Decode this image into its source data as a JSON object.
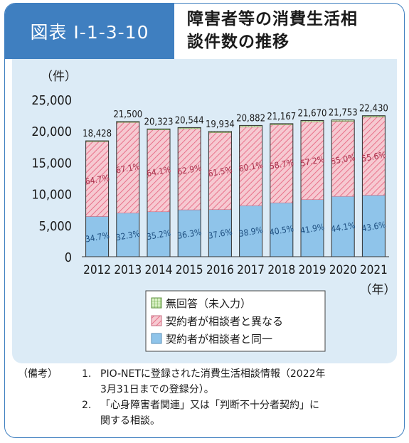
{
  "header": {
    "figure_label": "図表 I-1-3-10",
    "title_lines": [
      "障害者等の消費生活相",
      "談件数の推移"
    ]
  },
  "chart_data": {
    "type": "bar",
    "stacked": true,
    "y_unit": "（件）",
    "x_unit": "（年）",
    "ylim": [
      0,
      25000
    ],
    "yticks": [
      "0",
      "5,000",
      "10,000",
      "15,000",
      "20,000",
      "25,000"
    ],
    "ytick_values": [
      0,
      5000,
      10000,
      15000,
      20000,
      25000
    ],
    "categories": [
      "2012",
      "2013",
      "2014",
      "2015",
      "2016",
      "2017",
      "2018",
      "2019",
      "2020",
      "2021"
    ],
    "totals": [
      18428,
      21500,
      20323,
      20544,
      19934,
      20882,
      21167,
      21670,
      21753,
      22430
    ],
    "total_labels": [
      "18,428",
      "21,500",
      "20,323",
      "20,544",
      "19,934",
      "20,882",
      "21,167",
      "21,670",
      "21,753",
      "22,430"
    ],
    "series": [
      {
        "name": "契約者が相談者と同一",
        "color": "#8fc4ea",
        "values": [
          6394,
          6945,
          7154,
          7457,
          7495,
          8123,
          8573,
          9080,
          9593,
          9779
        ],
        "labels": [
          "34.7%",
          "32.3%",
          "35.2%",
          "36.3%",
          "37.6%",
          "38.9%",
          "40.5%",
          "41.9%",
          "44.1%",
          "43.6%"
        ]
      },
      {
        "name": "契約者が相談者と異なる",
        "color": "#f3b9c4",
        "values": [
          11923,
          14427,
          13027,
          12922,
          12259,
          12550,
          12425,
          12395,
          11964,
          12471
        ],
        "labels": [
          "64.7%",
          "67.1%",
          "64.1%",
          "62.9%",
          "61.5%",
          "60.1%",
          "58.7%",
          "57.2%",
          "55.0%",
          "55.6%"
        ]
      },
      {
        "name": "無回答（未入力）",
        "color": "#c8e6b0",
        "values": [
          111,
          128,
          142,
          165,
          180,
          209,
          169,
          195,
          196,
          180
        ],
        "labels": [
          "",
          "",
          "",
          "",
          "",
          "",
          "",
          "",
          "",
          ""
        ]
      }
    ],
    "legend": [
      "無回答（未入力）",
      "契約者が相談者と異なる",
      "契約者が相談者と同一"
    ],
    "legend_position": "bottom-center"
  },
  "notes": {
    "head": "（備考）",
    "items": [
      {
        "num": "1.",
        "lines": [
          "PIO-NETに登録された消費生活相談情報（2022年",
          "3月31日までの登録分）。"
        ]
      },
      {
        "num": "2.",
        "lines": [
          "「心身障害者関連」又は「判断不十分者契約」に",
          "関する相談。"
        ]
      }
    ]
  }
}
